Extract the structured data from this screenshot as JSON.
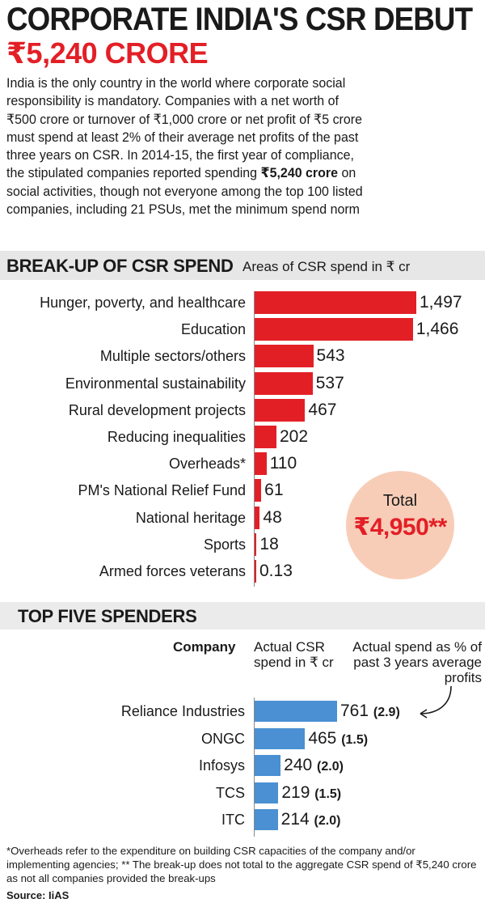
{
  "header": {
    "title": "CORPORATE INDIA'S CSR DEBUT",
    "subtitle": "₹5,240 CRORE"
  },
  "intro": {
    "lines": [
      "India is the only country in the world where corporate social",
      "responsibility is mandatory. Companies with a net worth of",
      "₹500 crore or turnover of ₹1,000 crore or net profit of ₹5 crore",
      "must spend at least 2% of their average net profits of the past",
      "three years on CSR. In 2014-15, the first year of compliance,"
    ],
    "line6_pre": "the stipulated companies reported spending ",
    "line6_bold": "₹5,240 crore",
    "line6_post": " on",
    "line7": "social activities, though not everyone among the top 100 listed",
    "line8": "companies, including 21 PSUs, met the minimum spend norm"
  },
  "breakup": {
    "heading": "BREAK-UP OF CSR SPEND",
    "subheading": "Areas of CSR spend in ₹ cr"
  },
  "total": {
    "label": "Total",
    "value": "₹4,950**"
  },
  "top5": {
    "heading": "TOP FIVE SPENDERS",
    "col_company": "Company",
    "col_actual": "Actual CSR spend in ₹ cr",
    "col_pct": "Actual spend as % of past 3 years average profits"
  },
  "chart_data": [
    {
      "type": "bar",
      "orientation": "horizontal",
      "title": "BREAK-UP OF CSR SPEND",
      "subtitle": "Areas of CSR spend in ₹ cr",
      "categories": [
        "Hunger, poverty, and healthcare",
        "Education",
        "Multiple sectors/others",
        "Environmental sustainability",
        "Rural development projects",
        "Reducing inequalities",
        "Overheads*",
        "PM's National Relief Fund",
        "National heritage",
        "Sports",
        "Armed forces veterans"
      ],
      "values": [
        1497,
        1466,
        543,
        537,
        467,
        202,
        110,
        61,
        48,
        18,
        0.13
      ],
      "value_labels": [
        "1,497",
        "1,466",
        "543",
        "537",
        "467",
        "202",
        "110",
        "61",
        "48",
        "18",
        "0.13"
      ],
      "xlim": [
        0,
        1497
      ],
      "color": "#e31f26"
    },
    {
      "type": "bar",
      "orientation": "horizontal",
      "title": "TOP FIVE SPENDERS",
      "categories": [
        "Reliance Industries",
        "ONGC",
        "Infosys",
        "TCS",
        "ITC"
      ],
      "values": [
        761,
        465,
        240,
        219,
        214
      ],
      "pct_of_profits": [
        "(2.9)",
        "(1.5)",
        "(2.0)",
        "(1.5)",
        "(2.0)"
      ],
      "xlim": [
        0,
        761
      ],
      "color": "#4a90d2"
    }
  ],
  "footnote": "*Overheads refer to the expenditure on building CSR capacities of the company and/or implementing agencies; ** The break-up does not total to the aggregate CSR spend of ₹5,240 crore as not all companies provided the break-ups",
  "source": "Source: IiAS"
}
